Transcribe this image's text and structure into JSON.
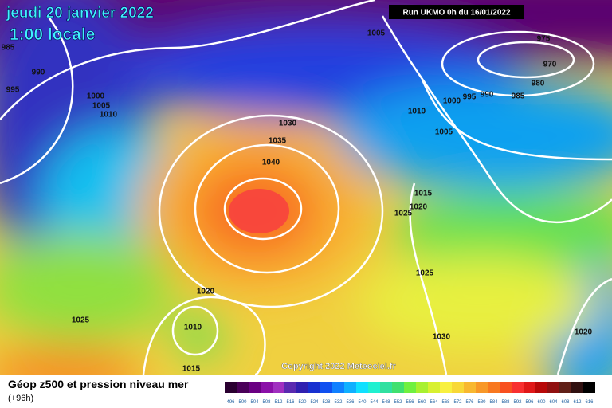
{
  "header": {
    "title": "jeudi 20 janvier 2022",
    "subtitle": "1:00 locale",
    "run": "Run UKMO 0h du 16/01/2022"
  },
  "isobar_labels": [
    "985",
    "990",
    "995",
    "1000",
    "1005",
    "1010",
    "1005",
    "975",
    "970",
    "980",
    "1000",
    "995",
    "990",
    "985",
    "1010",
    "1005",
    "1030",
    "1035",
    "1040",
    "1015",
    "1020",
    "1025",
    "1025",
    "1020",
    "1010",
    "1025",
    "1015",
    "1030",
    "1020"
  ],
  "copyright": "Copyright 2022 Meteociel.fr",
  "footer": {
    "title": "Géop z500 et pression niveau mer",
    "lead": "(+96h)"
  },
  "colorbar": {
    "values": [
      496,
      500,
      504,
      508,
      512,
      516,
      520,
      524,
      528,
      532,
      536,
      540,
      544,
      548,
      552,
      556,
      560,
      564,
      568,
      572,
      576,
      580,
      584,
      588,
      592,
      596,
      600,
      604,
      608,
      612,
      616
    ],
    "colors": [
      "#2a0030",
      "#4a0058",
      "#6a0082",
      "#8a10a8",
      "#a030c0",
      "#5a2ab0",
      "#3020b0",
      "#1830d0",
      "#1050f0",
      "#1080ff",
      "#10b0ff",
      "#10e0ff",
      "#20f0d0",
      "#30e0a0",
      "#40e070",
      "#70f040",
      "#a8f030",
      "#d8f030",
      "#f8f040",
      "#f8d838",
      "#f8b830",
      "#f89828",
      "#f87820",
      "#f85020",
      "#f83030",
      "#e01818",
      "#b80808",
      "#901010",
      "#602018",
      "#301010",
      "#000000"
    ]
  }
}
